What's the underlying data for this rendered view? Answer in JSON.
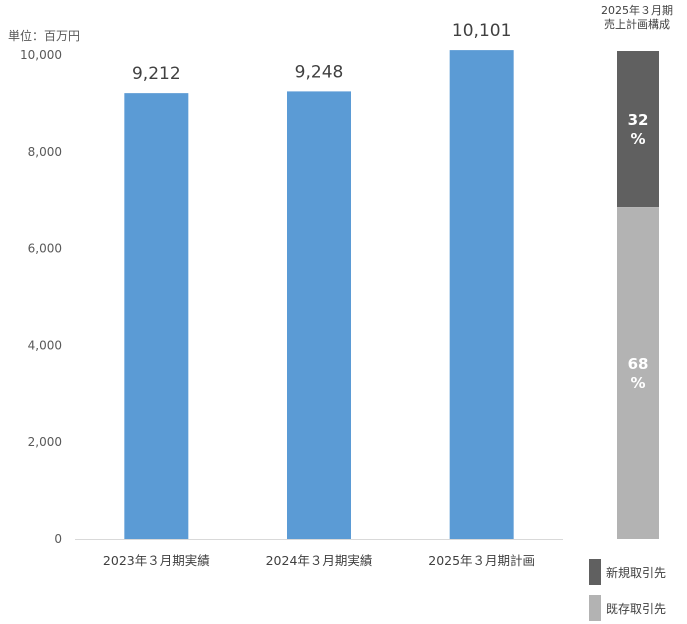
{
  "unit_label": "単位：百万円",
  "chart_data": [
    {
      "type": "bar",
      "categories": [
        "2023年３月期実績",
        "2024年３月期実績",
        "2025年３月期計画"
      ],
      "values": [
        9212,
        9248,
        10101
      ],
      "value_labels": [
        "9,212",
        "9,248",
        "10,101"
      ],
      "ylim": [
        0,
        10000
      ],
      "yticks": [
        0,
        2000,
        4000,
        6000,
        8000,
        10000
      ],
      "ytick_labels": [
        "0",
        "2,000",
        "4,000",
        "6,000",
        "8,000",
        "10,000"
      ],
      "grid": false,
      "bar_color": "#5b9bd5"
    },
    {
      "type": "bar",
      "stacked": true,
      "title_lines": [
        "2025年３月期",
        "売上計画構成"
      ],
      "series": [
        {
          "name": "新規取引先",
          "value": 32,
          "label_lines": [
            "32",
            "%"
          ],
          "color": "#606060"
        },
        {
          "name": "既存取引先",
          "value": 68,
          "label_lines": [
            "68",
            "%"
          ],
          "color": "#b3b3b3"
        }
      ],
      "legend_position": "bottom"
    }
  ]
}
